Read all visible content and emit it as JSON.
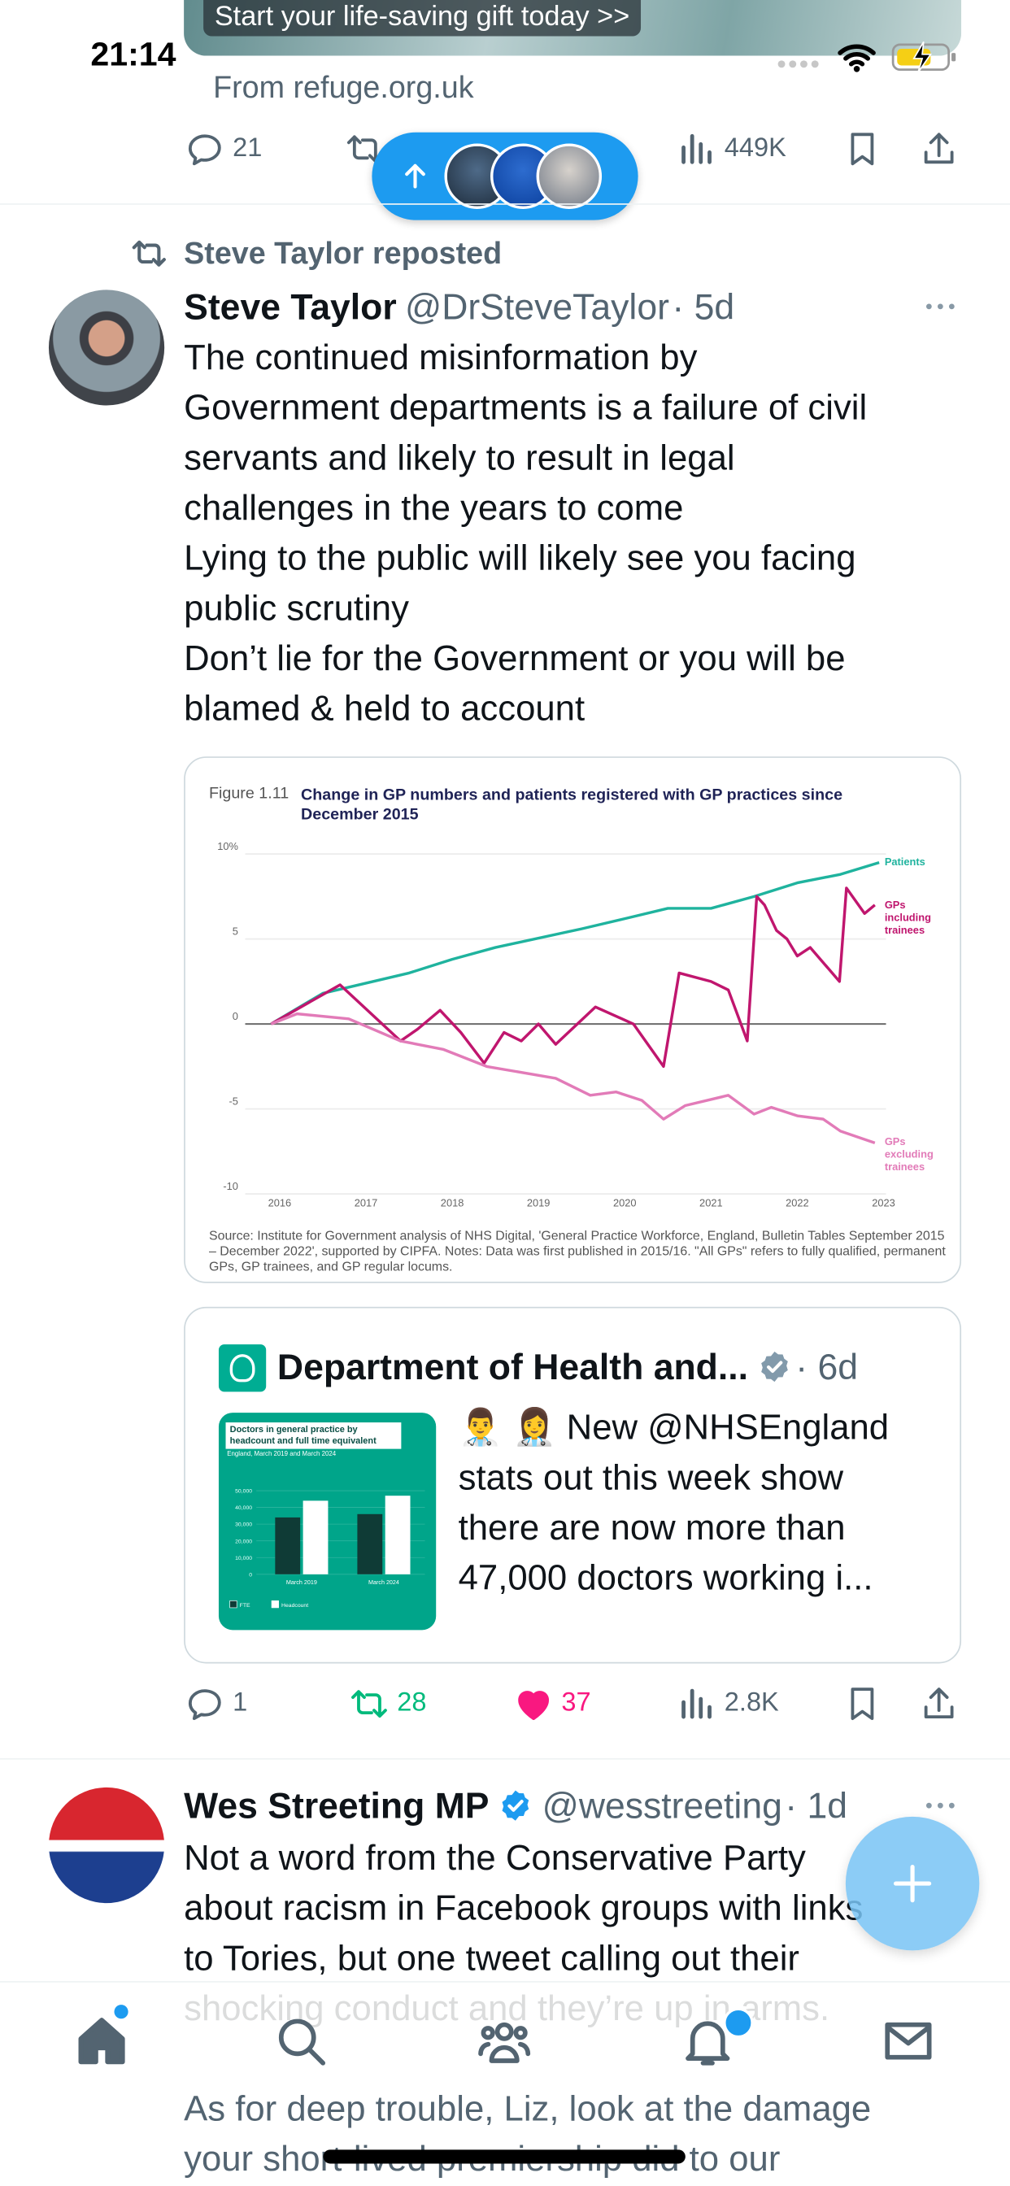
{
  "status_bar": {
    "time": "21:14"
  },
  "ad": {
    "banner": "Start your life-saving gift today >>",
    "source": "From refuge.org.uk",
    "stats": {
      "replies": "21",
      "views": "449K"
    }
  },
  "repost": "Steve Taylor reposted",
  "tweets": [
    {
      "name": "Steve Taylor",
      "handle": "@DrSteveTaylor",
      "time": "· 5d",
      "lines": [
        "The continued misinformation by",
        "Government departments is a failure of civil",
        "servants and likely to result in legal",
        "challenges in the years to come",
        "Lying to the public will likely see you facing",
        "public scrutiny",
        "Don’t lie for the Government or you will be",
        "blamed & held to account"
      ],
      "chart": {
        "type": "line",
        "figure_label": "Figure 1.11",
        "title": "Change in GP numbers and patients registered with GP practices since December 2015",
        "source": "Source: Institute for Government analysis of NHS Digital, 'General Practice Workforce, England, Bulletin Tables September 2015 – December 2022', supported by CIPFA. Notes: Data was first published in 2015/16. \"All GPs\" refers to fully qualified, permanent GPs, GP trainees, and GP regular locums.",
        "xlim": [
          2015.6,
          2023.4
        ],
        "xticks": [
          2016,
          2017,
          2018,
          2019,
          2020,
          2021,
          2022,
          2023
        ],
        "ylim": [
          -10,
          10
        ],
        "yticks": [
          {
            "value": 10,
            "label": "10%"
          },
          5,
          0,
          -5,
          -10
        ],
        "grid": true,
        "series": [
          {
            "name": "Patients",
            "color": "#1fb39e",
            "x": [
              2015.9,
              2016.5,
              2017.5,
              2018,
              2018.5,
              2019.5,
              2020,
              2020.5,
              2021,
              2021.5,
              2022,
              2022.5,
              2022.95
            ],
            "values": [
              0,
              1.8,
              3.0,
              3.8,
              4.5,
              5.6,
              6.2,
              6.8,
              6.8,
              7.5,
              8.3,
              8.8,
              9.5
            ]
          },
          {
            "name": "GPs including trainees",
            "color": "#c0166e",
            "x": [
              2015.9,
              2016.7,
              2017.4,
              2017.6,
              2017.86,
              2018.1,
              2018.37,
              2018.6,
              2018.8,
              2019.0,
              2019.2,
              2019.66,
              2020.1,
              2020.45,
              2020.63,
              2021.0,
              2021.2,
              2021.42,
              2021.53,
              2021.62,
              2021.76,
              2021.88,
              2022.0,
              2022.15,
              2022.49,
              2022.57,
              2022.78,
              2022.9
            ],
            "values": [
              0,
              2.3,
              -1.0,
              -0.3,
              0.8,
              -0.5,
              -2.3,
              -0.5,
              -1.0,
              0,
              -1.2,
              1.0,
              0,
              -2.5,
              3.0,
              2.5,
              2.0,
              -1.0,
              7.5,
              7.0,
              5.5,
              5.0,
              4.0,
              4.5,
              2.5,
              8.0,
              6.5,
              7.0
            ]
          },
          {
            "name": "GPs excluding trainees",
            "color": "#e27bb8",
            "x": [
              2015.9,
              2016.2,
              2016.8,
              2017.4,
              2017.9,
              2018.4,
              2019.2,
              2019.6,
              2019.9,
              2020.2,
              2020.45,
              2020.7,
              2021.2,
              2021.5,
              2021.7,
              2022.0,
              2022.3,
              2022.5,
              2022.9
            ],
            "values": [
              0,
              0.6,
              0.3,
              -1.0,
              -1.5,
              -2.5,
              -3.2,
              -4.2,
              -4.0,
              -4.5,
              -5.6,
              -4.8,
              -4.2,
              -5.3,
              -4.9,
              -5.4,
              -5.6,
              -6.3,
              -7.0
            ]
          }
        ]
      },
      "quote": {
        "name": "Department of Health and...",
        "time": "· 6d",
        "lines": [
          "👨‍⚕️ 👩‍⚕️ New @NHSEngland",
          "stats out this week show",
          "there are now more than",
          "47,000 doctors working i..."
        ],
        "image_chart": {
          "type": "bar",
          "title": "Doctors in general practice by headcount and full time equivalent",
          "subtitle": "England, March 2019 and March 2024",
          "categories": [
            "March 2019",
            "March 2024"
          ],
          "series": [
            {
              "name": "FTE",
              "color": "#0f3b36",
              "values": [
                34000,
                36000
              ]
            },
            {
              "name": "Headcount",
              "color": "#ffffff",
              "values": [
                44000,
                47000
              ]
            }
          ],
          "ylim": [
            0,
            50000
          ],
          "yticks": [
            0,
            {
              "value": 10000,
              "label": "10,000"
            },
            {
              "value": 20000,
              "label": "20,000"
            },
            {
              "value": 30000,
              "label": "30,000"
            },
            {
              "value": 40000,
              "label": "40,000"
            },
            {
              "value": 50000,
              "label": "50,000"
            }
          ]
        }
      },
      "stats": {
        "replies": "1",
        "reposts": "28",
        "likes": "37",
        "views": "2.8K"
      }
    },
    {
      "name": "Wes Streeting MP",
      "handle": "@wesstreeting",
      "time": "· 1d",
      "paragraphs": [
        [
          "Not a word from the Conservative Party",
          "about racism in Facebook groups with links",
          "to Tories, but one tweet calling out their",
          "shocking conduct and they’re up in arms."
        ],
        [
          "As for deep trouble, Liz, look at the damage",
          "your short-lived premiership did to our"
        ]
      ]
    }
  ]
}
